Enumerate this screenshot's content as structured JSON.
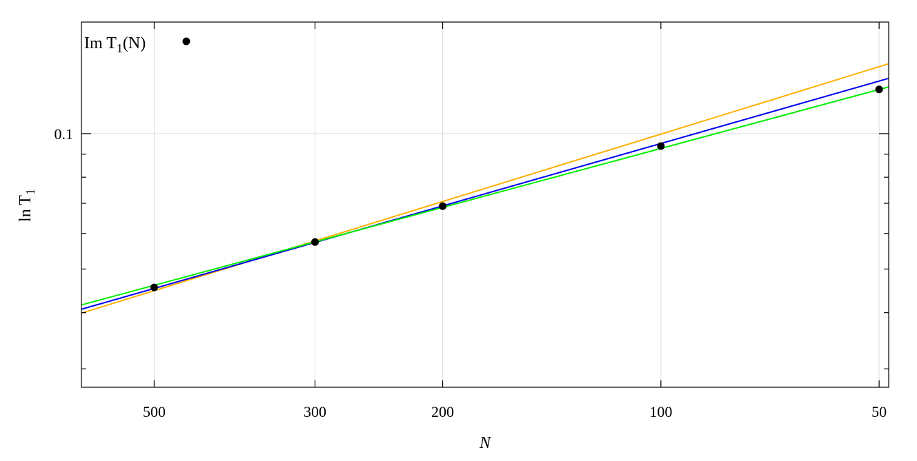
{
  "chart_data": {
    "type": "line",
    "xlabel": "N",
    "ylabel": "ln T",
    "ylabel_sub": "1",
    "x_scale": "log",
    "x_reversed": true,
    "y_scale": "log",
    "xlim": [
      630,
      48.5
    ],
    "ylim": [
      0.0273,
      0.177
    ],
    "x_ticks": [
      500,
      300,
      200,
      100,
      50
    ],
    "x_tick_labels": [
      "500",
      "300",
      "200",
      "100",
      "50"
    ],
    "y_ticks": [
      0.1
    ],
    "y_tick_labels": [
      "0.1"
    ],
    "y_minor_ticks": [
      0.09,
      0.08,
      0.07,
      0.06,
      0.05,
      0.04,
      0.03
    ],
    "grid": true,
    "legend": {
      "label": "Im T",
      "label_sub": "1",
      "label_suffix": "(N)",
      "placement": "top-left"
    },
    "points": {
      "name": "Im T1(N)",
      "color": "#000000",
      "x": [
        500,
        300,
        200,
        100,
        50
      ],
      "y": [
        0.0455,
        0.0574,
        0.069,
        0.0938,
        0.1254
      ]
    },
    "series": [
      {
        "color": "#ffb000",
        "x": [
          630,
          48.5
        ],
        "y": [
          0.0399,
          0.143
        ]
      },
      {
        "color": "#0000ee",
        "x": [
          630,
          48.5
        ],
        "y": [
          0.0407,
          0.1327
        ]
      },
      {
        "color": "#00ee00",
        "x": [
          630,
          48.5
        ],
        "y": [
          0.0416,
          0.127
        ]
      }
    ]
  }
}
